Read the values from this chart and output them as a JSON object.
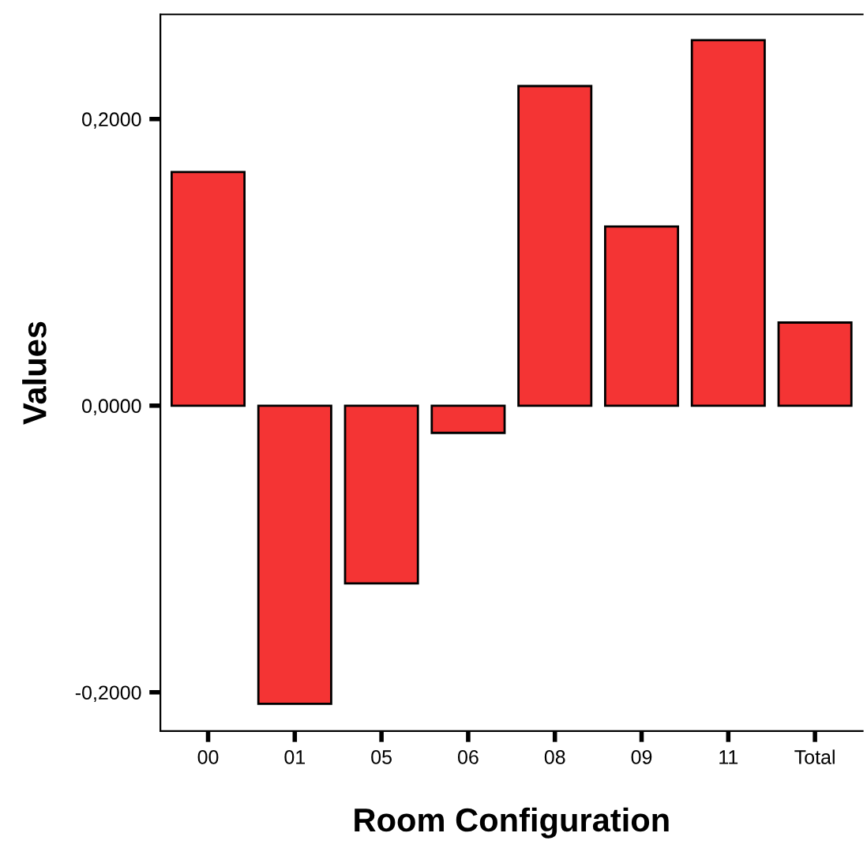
{
  "chart_data": {
    "type": "bar",
    "xlabel": "Room Configuration",
    "ylabel": "Values",
    "categories": [
      "00",
      "01",
      "05",
      "06",
      "08",
      "09",
      "11",
      "Total"
    ],
    "values": [
      0.163,
      -0.208,
      -0.124,
      -0.019,
      0.223,
      0.125,
      0.255,
      0.058
    ],
    "color": "#f43434",
    "ylim": [
      -0.227,
      0.273
    ],
    "yticks": [
      {
        "value": -0.2,
        "label": "-0,2000"
      },
      {
        "value": 0,
        "label": "0,0000"
      },
      {
        "value": 0.2,
        "label": "0,2000"
      }
    ],
    "grid": false,
    "legend": false
  }
}
